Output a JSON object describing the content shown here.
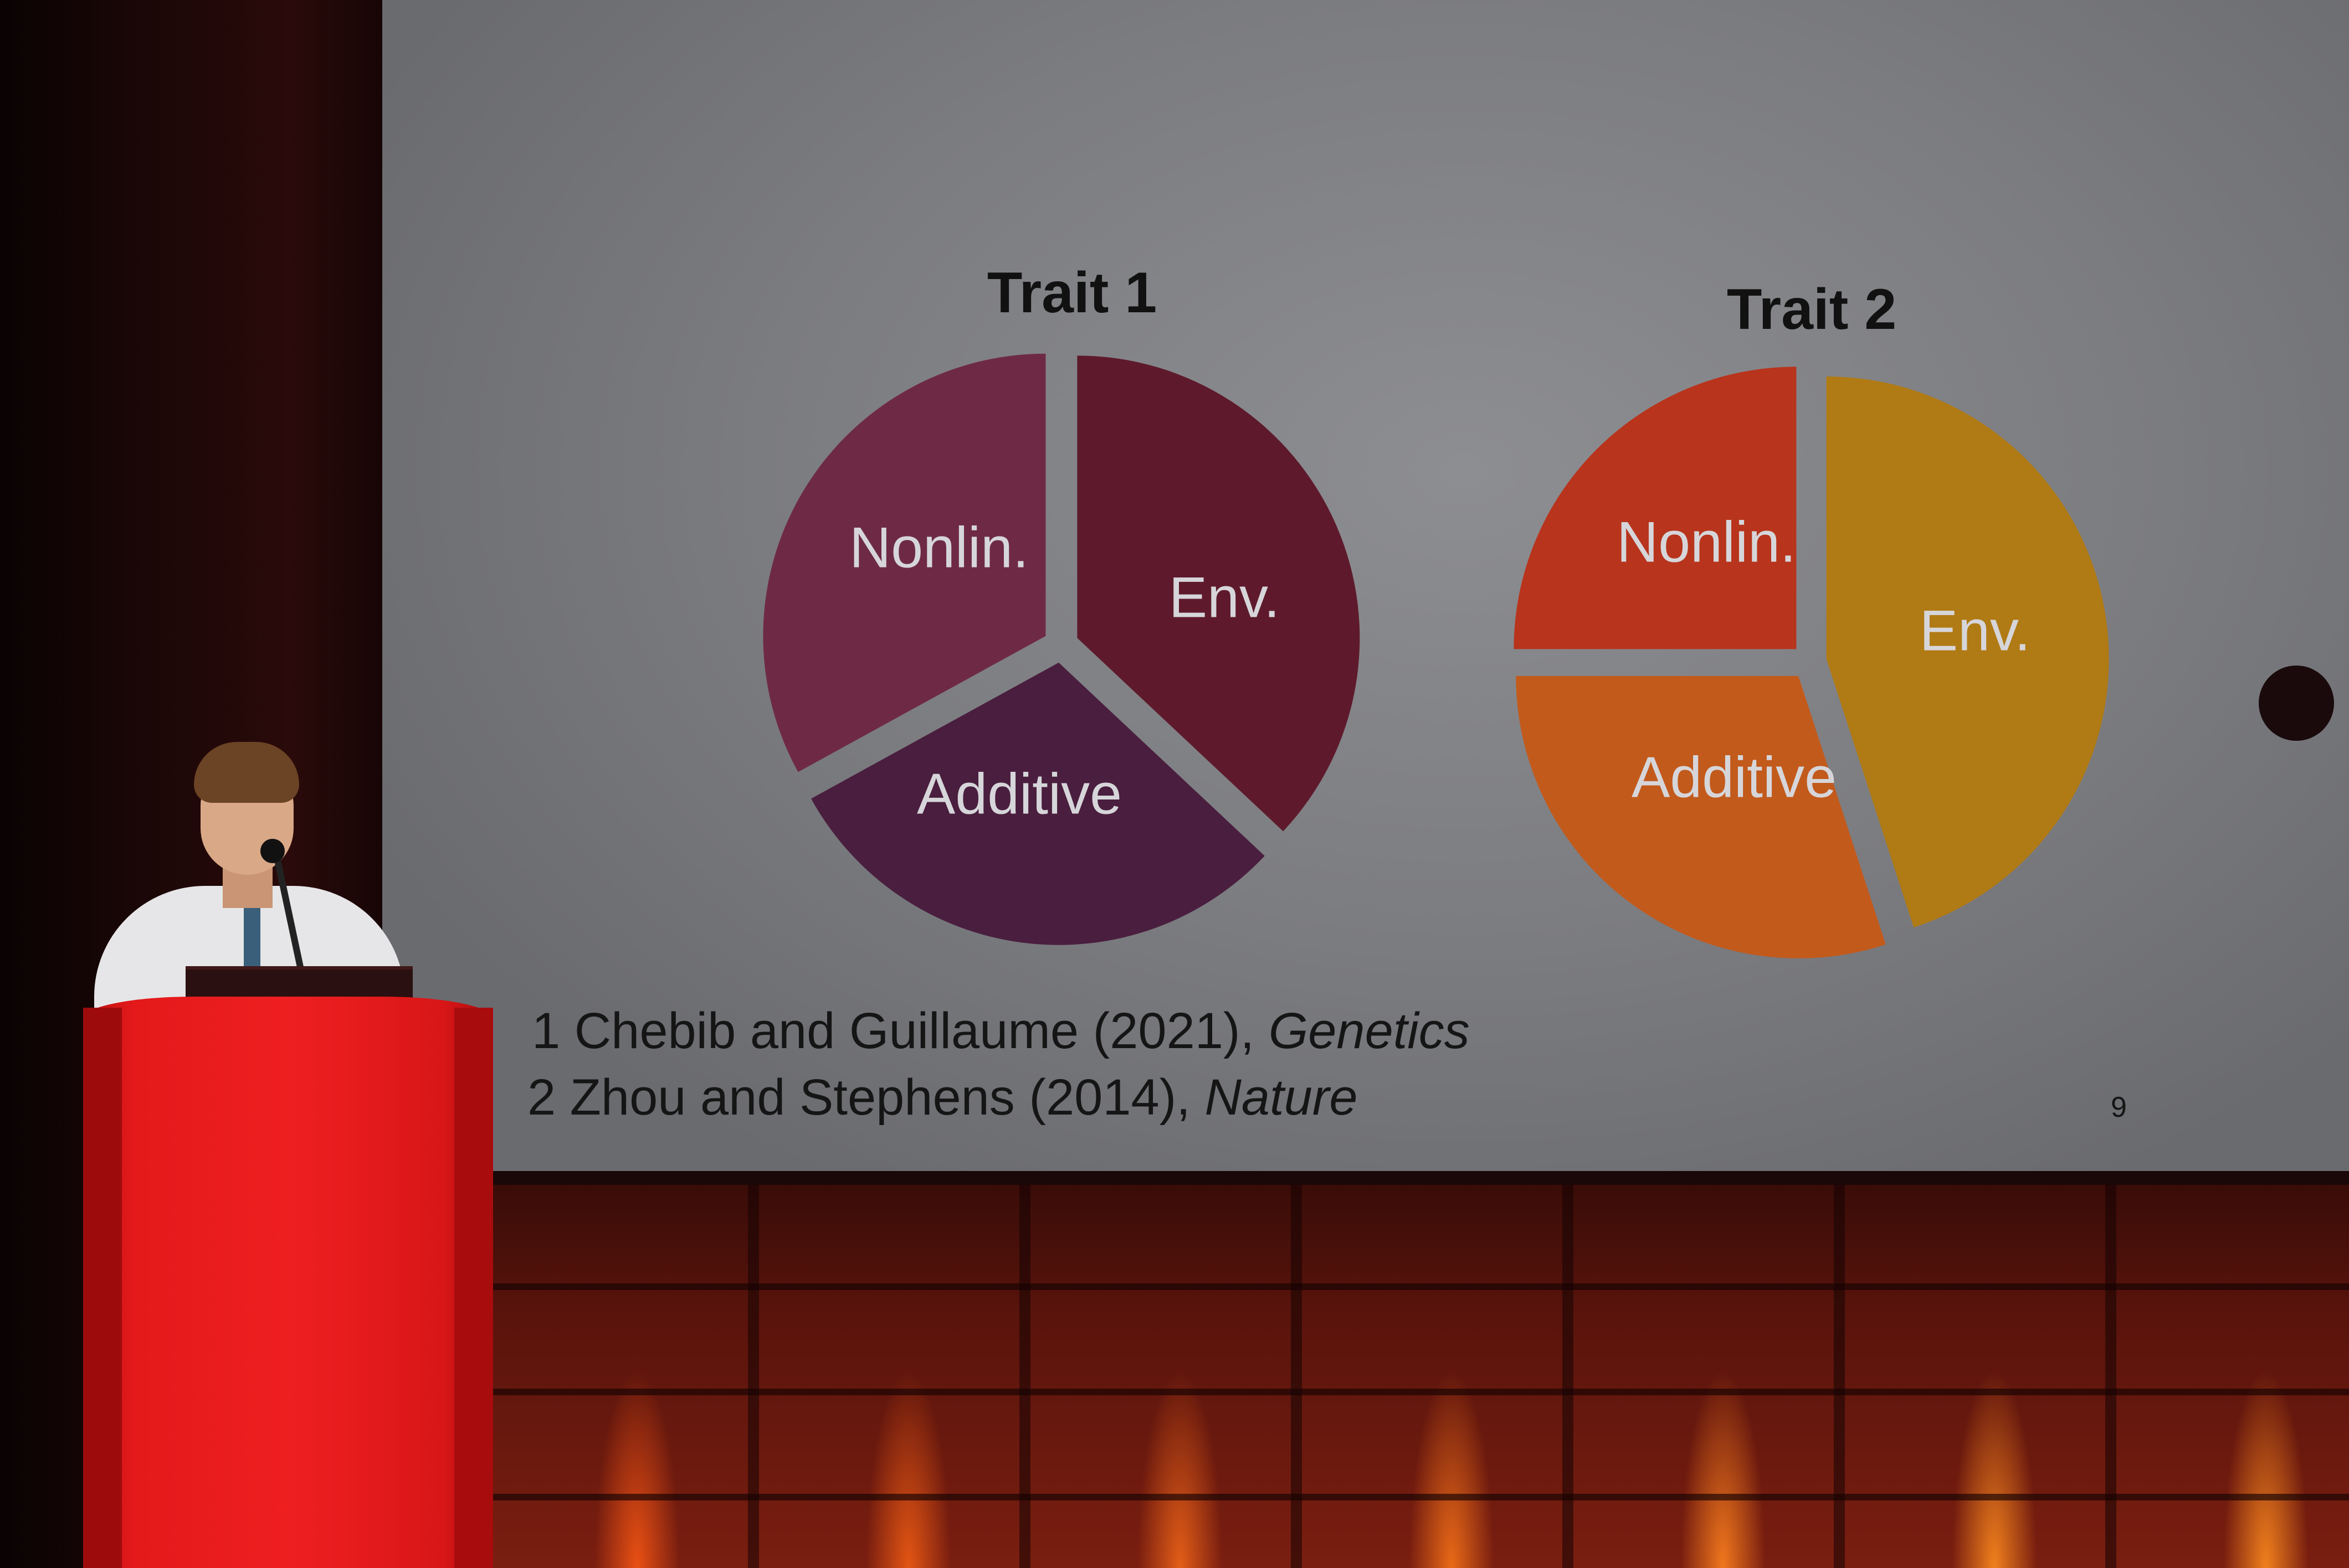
{
  "slide": {
    "pies": [
      {
        "title": "Trait 1",
        "slices": [
          {
            "label": "Nonlin.",
            "share": 0.33,
            "color": "#6e2a44"
          },
          {
            "label": "Env.",
            "share": 0.37,
            "color": "#5e1a2c"
          },
          {
            "label": "Additive",
            "share": 0.3,
            "color": "#4a1e3e"
          }
        ]
      },
      {
        "title": "Trait 2",
        "slices": [
          {
            "label": "Nonlin.",
            "share": 0.25,
            "color": "#b8341c"
          },
          {
            "label": "Env.",
            "share": 0.45,
            "color": "#b07a14"
          },
          {
            "label": "Additive",
            "share": 0.3,
            "color": "#c25a1c"
          }
        ]
      }
    ],
    "references": [
      {
        "text": "1 Chebib and Guillaume (2021), ",
        "italic": "Genetics"
      },
      {
        "text": "2 Zhou and Stephens (2014), ",
        "italic": "Nature"
      }
    ],
    "page_number": "9",
    "colors": {
      "screen": "#7c7d81",
      "podium": "#e3191a",
      "stage_light": "#ff7a1e"
    }
  }
}
